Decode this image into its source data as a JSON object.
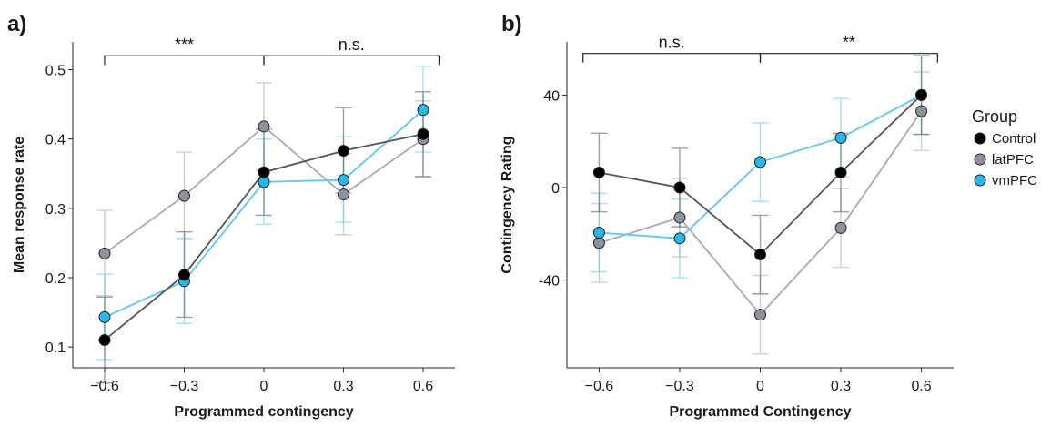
{
  "panels": [
    {
      "letter": "a)",
      "chart_data": {
        "type": "line",
        "xlabel": "Programmed contingency",
        "ylabel": "Mean response rate",
        "categories": [
          "−0.6",
          "−0.3",
          "0",
          "0.3",
          "0.6"
        ],
        "x": [
          -0.6,
          -0.3,
          0,
          0.3,
          0.6
        ],
        "xlim": [
          -0.72,
          0.72
        ],
        "ylim": [
          0.07,
          0.54
        ],
        "yticks": [
          0.1,
          0.2,
          0.3,
          0.4,
          0.5
        ],
        "ytick_labels": [
          "0.1",
          "0.2",
          "0.3",
          "0.4",
          "0.5"
        ],
        "grid": false,
        "series": [
          {
            "name": "latPFC",
            "color": "#8e929d",
            "line_color": "#a7abb3",
            "values": [
              0.235,
              0.318,
              0.418,
              0.32,
              0.4
            ],
            "ci_low": [
              0.174,
              0.255,
              0.355,
              0.262,
              0.345
            ],
            "ci_high": [
              0.297,
              0.381,
              0.481,
              0.379,
              0.455
            ]
          },
          {
            "name": "vmPFC",
            "color": "#29b7e8",
            "line_color": "#5fc8ec",
            "values": [
              0.143,
              0.195,
              0.338,
              0.341,
              0.442
            ],
            "ci_low": [
              0.082,
              0.134,
              0.277,
              0.28,
              0.381
            ],
            "ci_high": [
              0.205,
              0.257,
              0.4,
              0.403,
              0.505
            ]
          },
          {
            "name": "Control",
            "color": "#000000",
            "line_color": "#555555",
            "values": [
              0.11,
              0.204,
              0.352,
              0.383,
              0.407
            ],
            "ci_low": [
              0.048,
              0.143,
              0.29,
              0.322,
              0.346
            ],
            "ci_high": [
              0.172,
              0.266,
              0.414,
              0.445,
              0.468
            ]
          }
        ],
        "annotations": [
          {
            "text": "***",
            "x_from": -0.6,
            "x_to": 0,
            "level": 0.52
          },
          {
            "text": "n.s.",
            "x_from": 0,
            "x_to": 0.66,
            "level": 0.52
          }
        ]
      }
    },
    {
      "letter": "b)",
      "chart_data": {
        "type": "line",
        "xlabel": "Programmed Contingency",
        "ylabel": "Contingency Rating",
        "categories": [
          "−0.6",
          "−0.3",
          "0",
          "0.3",
          "0.6"
        ],
        "x": [
          -0.6,
          -0.3,
          0,
          0.3,
          0.6
        ],
        "xlim": [
          -0.72,
          0.72
        ],
        "ylim": [
          -78,
          63
        ],
        "yticks": [
          -40,
          0,
          40
        ],
        "ytick_labels": [
          "-40",
          "0",
          "40"
        ],
        "grid": false,
        "series": [
          {
            "name": "latPFC",
            "color": "#8e929d",
            "line_color": "#a7abb3",
            "values": [
              -24,
              -13,
              -55,
              -17.5,
              33
            ],
            "ci_low": [
              -41,
              -30,
              -72,
              -34.5,
              16
            ],
            "ci_high": [
              -7,
              4,
              -38,
              -0.5,
              50
            ]
          },
          {
            "name": "vmPFC",
            "color": "#29b7e8",
            "line_color": "#5fc8ec",
            "values": [
              -19.5,
              -22,
              11,
              21.5,
              40
            ],
            "ci_low": [
              -36.5,
              -39,
              -6,
              4.5,
              23
            ],
            "ci_high": [
              -2.5,
              -5,
              28,
              38.5,
              57
            ]
          },
          {
            "name": "Control",
            "color": "#000000",
            "line_color": "#555555",
            "values": [
              6.5,
              0,
              -29,
              6.5,
              40
            ],
            "ci_low": [
              -10.5,
              -17,
              -46,
              -10.5,
              23
            ],
            "ci_high": [
              23.5,
              17,
              -12,
              23.5,
              57
            ]
          }
        ],
        "annotations": [
          {
            "text": "n.s.",
            "x_from": -0.66,
            "x_to": 0,
            "level": 58
          },
          {
            "text": "**",
            "x_from": 0,
            "x_to": 0.66,
            "level": 58
          }
        ]
      }
    }
  ],
  "legend": {
    "title": "Group",
    "items": [
      {
        "label": "Control",
        "color": "#000000"
      },
      {
        "label": "latPFC",
        "color": "#8e929d"
      },
      {
        "label": "vmPFC",
        "color": "#29b7e8"
      }
    ]
  }
}
